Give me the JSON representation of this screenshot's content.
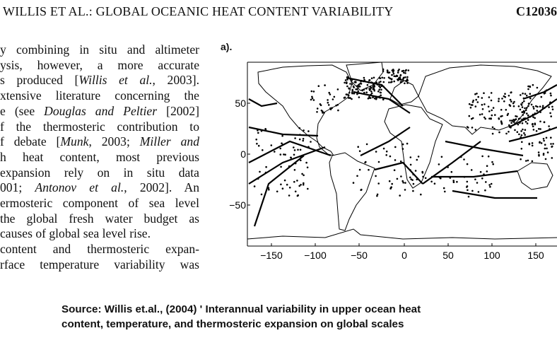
{
  "header": {
    "running_title": "WILLIS ET AL.: GLOBAL OCEANIC HEAT CONTENT VARIABILITY",
    "page_id": "C12036"
  },
  "body_text": {
    "lines": [
      [
        {
          "t": "y combining in situ and altimeter"
        }
      ],
      [
        {
          "t": "ysis, however, a more accurate"
        }
      ],
      [
        {
          "t": "s produced ["
        },
        {
          "t": "Willis et al.",
          "i": true
        },
        {
          "t": ", 2003]."
        }
      ],
      [
        {
          "t": "xtensive literature concerning the"
        }
      ],
      [
        {
          "t": "e (see "
        },
        {
          "t": "Douglas and Peltier",
          "i": true
        },
        {
          "t": " [2002]"
        }
      ],
      [
        {
          "t": "f the thermosteric contribution to"
        }
      ],
      [
        {
          "t": "f debate ["
        },
        {
          "t": "Munk",
          "i": true
        },
        {
          "t": ", 2003; "
        },
        {
          "t": "Miller and",
          "i": true
        }
      ],
      [
        {
          "t": "h heat content, most previous"
        }
      ],
      [
        {
          "t": " expansion rely on in situ data"
        }
      ],
      [
        {
          "t": "001; "
        },
        {
          "t": "Antonov et al.",
          "i": true
        },
        {
          "t": ", 2002]. An"
        }
      ],
      [
        {
          "t": "ermosteric component of sea level"
        }
      ],
      [
        {
          "t": " the global fresh water budget as"
        }
      ],
      [
        {
          "t": " causes of global sea level rise."
        }
      ],
      [
        {
          "t": "content and thermosteric expan-"
        }
      ],
      [
        {
          "t": "rface temperature variability was"
        }
      ]
    ]
  },
  "figure": {
    "panel_label": "a).",
    "x_ticks": [
      "−150",
      "−100",
      "−50",
      "0",
      "50",
      "100",
      "150"
    ],
    "y_ticks": [
      "50",
      "0",
      "−50"
    ]
  },
  "caption": {
    "line1": "Source: Willis et.al., (2004) ' Interannual variability in upper ocean heat",
    "line2": "content, temperature, and thermosteric expansion on global scales"
  },
  "colors": {
    "ink": "#000000",
    "background": "#ffffff"
  }
}
